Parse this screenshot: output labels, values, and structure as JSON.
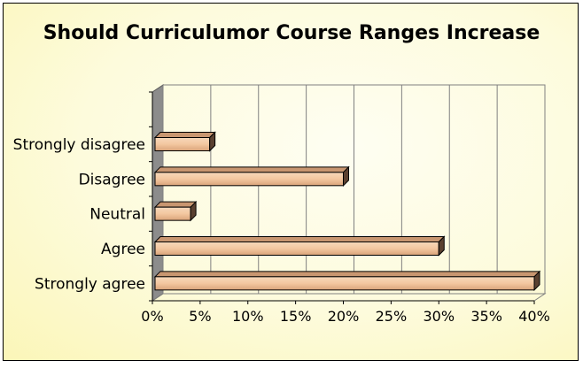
{
  "chart_data": {
    "type": "bar",
    "orientation": "horizontal",
    "title": "Should Curriculumor Course Ranges Increase",
    "xlabel": "",
    "ylabel": "",
    "categories": [
      "Strongly agree",
      "Agree",
      "Neutral",
      "Disagree",
      "Strongly disagree"
    ],
    "values": [
      40,
      30,
      4,
      20,
      6
    ],
    "value_unit": "%",
    "xlim": [
      0,
      40
    ],
    "x_ticks": [
      "0%",
      "5%",
      "10%",
      "15%",
      "20%",
      "25%",
      "30%",
      "35%",
      "40%"
    ],
    "grid": "vertical",
    "legend": "none",
    "colors": {
      "bar_front": "#f3c7a0",
      "bar_top": "#c89670",
      "bar_side": "#5a4030",
      "left_wall": "#8c8c8c",
      "background": "#fdfbdc"
    }
  }
}
